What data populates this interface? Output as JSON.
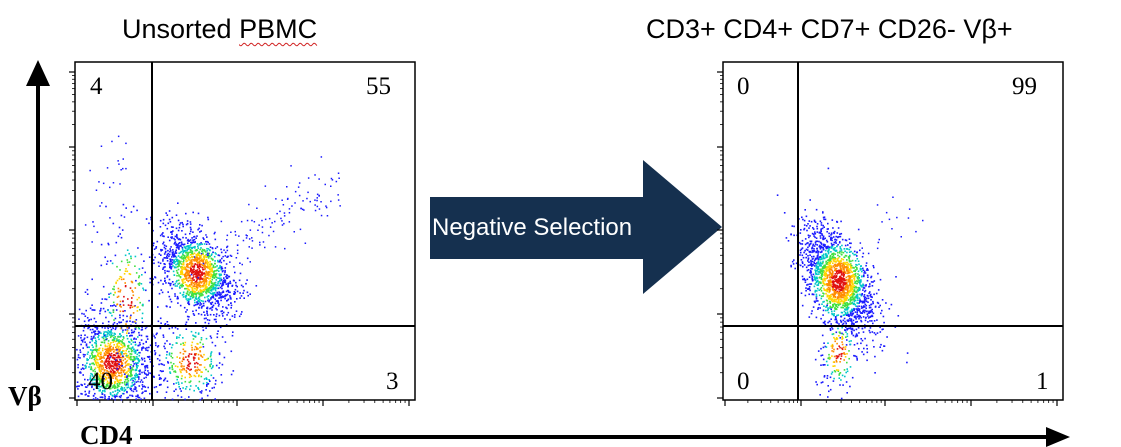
{
  "panels": {
    "left": {
      "title_main": "Unsorted ",
      "title_underlined": "PBMC",
      "quadrants": {
        "upper_left": "4",
        "upper_right": "55",
        "lower_left": "40",
        "lower_right": "3"
      }
    },
    "right": {
      "title": "CD3+ CD4+ CD7+ CD26- Vβ+",
      "quadrants": {
        "upper_left": "0",
        "upper_right": "99",
        "lower_left": "0",
        "lower_right": "1"
      }
    }
  },
  "center_arrow": {
    "label": "Negative Selection",
    "color": "#15304f"
  },
  "axes": {
    "y_label": "Vβ",
    "x_label": "CD4"
  },
  "colors": {
    "density_low": "#1a1aff",
    "density_mid": "#00c8c8",
    "density_high": "#ffd400",
    "density_peak": "#e01010"
  }
}
